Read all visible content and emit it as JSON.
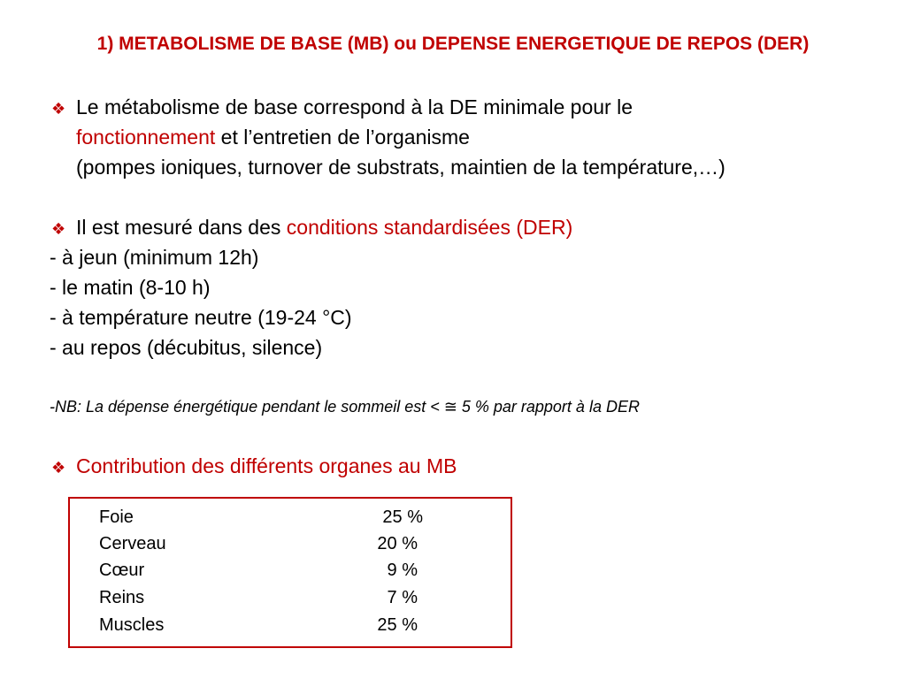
{
  "title": "1) METABOLISME DE BASE (MB) ou DEPENSE ENERGETIQUE DE REPOS (DER)",
  "bullet_icon": "diamond-cluster-icon",
  "colors": {
    "accent": "#c00000"
  },
  "section1": {
    "line1": "Le métabolisme de base correspond à la DE minimale pour le",
    "line2_red": "fonctionnement",
    "line2_rest": " et l’entretien de l’organisme",
    "line3": "(pompes ioniques, turnover de substrats, maintien de la température,…)"
  },
  "section2": {
    "intro": "Il est mesuré dans des ",
    "intro_red": "conditions standardisées (DER)",
    "items": [
      "- à jeun (minimum 12h)",
      "- le matin (8-10 h)",
      "- à température neutre (19-24 °C)",
      "- au repos (décubitus, silence)"
    ]
  },
  "nb": "-NB:  La dépense énergétique pendant le sommeil est < ≅ 5 % par rapport à la DER",
  "section3": {
    "heading": "Contribution des différents organes au MB",
    "rows": [
      {
        "organ": "Foie",
        "value": "25 %"
      },
      {
        "organ": "Cerveau",
        "value": "20 %"
      },
      {
        "organ": "Cœur",
        "value": "9 %"
      },
      {
        "organ": "Reins",
        "value": "7 %"
      },
      {
        "organ": "Muscles",
        "value": "25 %"
      }
    ]
  }
}
